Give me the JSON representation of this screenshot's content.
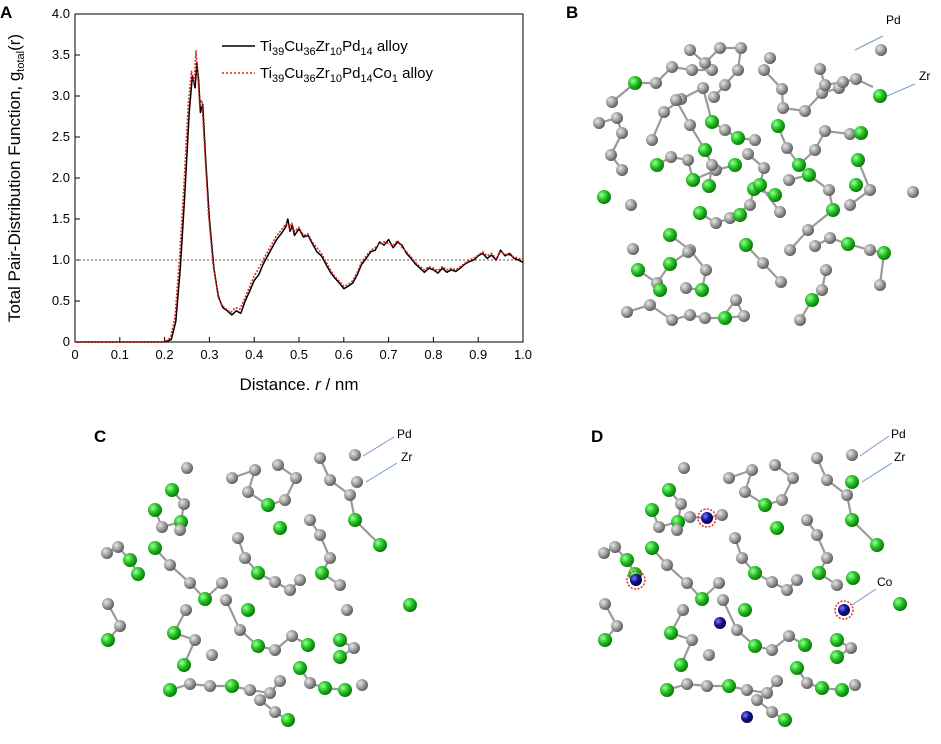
{
  "panels": {
    "a": "A",
    "b": "B",
    "c": "C",
    "d": "D"
  },
  "annotations": {
    "pd": "Pd",
    "zr": "Zr",
    "co": "Co"
  },
  "colors": {
    "ti_cu_atom": "#8c8c8c",
    "zr_atom": "#1fbe1f",
    "co_atom": "#0d0d80",
    "co_highlight": "#e03030",
    "arrow": "#6e9ad0",
    "series1": "#000000",
    "series2": "#e02020"
  },
  "chart_data": {
    "type": "line",
    "ylabel_main": "Total Pair-Distribution Function, g",
    "ylabel_sub": "total",
    "ylabel_tail": "(r)",
    "xlabel": "Distance. r / nm",
    "xlim": [
      0,
      1.0
    ],
    "ylim": [
      0,
      4.0
    ],
    "xticks": [
      "0",
      "0.1",
      "0.2",
      "0.3",
      "0.4",
      "0.5",
      "0.6",
      "0.7",
      "0.8",
      "0.9",
      "1.0"
    ],
    "yticks": [
      "0",
      "0.5",
      "1.0",
      "1.5",
      "2.0",
      "2.5",
      "3.0",
      "3.5",
      "4.0"
    ],
    "reference_line": 1.0,
    "legend_position": "top-right",
    "series": [
      {
        "name": "Ti39Cu36Zr10Pd14 alloy",
        "style": "solid",
        "x": [
          0.0,
          0.2,
          0.215,
          0.225,
          0.235,
          0.245,
          0.255,
          0.262,
          0.268,
          0.272,
          0.276,
          0.28,
          0.285,
          0.292,
          0.3,
          0.31,
          0.32,
          0.33,
          0.34,
          0.35,
          0.36,
          0.37,
          0.38,
          0.39,
          0.4,
          0.41,
          0.42,
          0.43,
          0.44,
          0.45,
          0.46,
          0.47,
          0.475,
          0.48,
          0.485,
          0.49,
          0.5,
          0.51,
          0.52,
          0.53,
          0.54,
          0.55,
          0.56,
          0.57,
          0.58,
          0.59,
          0.6,
          0.61,
          0.62,
          0.63,
          0.64,
          0.65,
          0.66,
          0.67,
          0.68,
          0.69,
          0.7,
          0.71,
          0.72,
          0.73,
          0.74,
          0.75,
          0.76,
          0.77,
          0.78,
          0.79,
          0.8,
          0.81,
          0.82,
          0.83,
          0.84,
          0.85,
          0.86,
          0.87,
          0.88,
          0.89,
          0.9,
          0.91,
          0.92,
          0.93,
          0.94,
          0.95,
          0.96,
          0.97,
          0.98,
          0.99,
          1.0
        ],
        "y": [
          0,
          0,
          0.03,
          0.25,
          0.9,
          1.8,
          2.8,
          3.25,
          3.1,
          3.4,
          3.2,
          2.8,
          2.9,
          2.2,
          1.5,
          0.9,
          0.55,
          0.42,
          0.38,
          0.33,
          0.38,
          0.35,
          0.5,
          0.62,
          0.75,
          0.82,
          0.95,
          1.05,
          1.15,
          1.25,
          1.32,
          1.4,
          1.5,
          1.35,
          1.42,
          1.3,
          1.38,
          1.28,
          1.3,
          1.2,
          1.1,
          1.05,
          0.95,
          0.85,
          0.78,
          0.72,
          0.65,
          0.68,
          0.72,
          0.82,
          0.95,
          1.02,
          1.1,
          1.12,
          1.22,
          1.18,
          1.25,
          1.15,
          1.22,
          1.18,
          1.08,
          1.02,
          0.95,
          0.9,
          0.85,
          0.9,
          0.88,
          0.84,
          0.9,
          0.85,
          0.88,
          0.86,
          0.9,
          0.95,
          0.98,
          1.0,
          1.05,
          1.08,
          1.02,
          1.06,
          1.0,
          1.12,
          1.05,
          1.08,
          1.02,
          1.0,
          0.97
        ]
      },
      {
        "name": "Ti39Cu36Zr10Pd14Co1 alloy",
        "style": "dotted",
        "x": [
          0.0,
          0.2,
          0.213,
          0.223,
          0.233,
          0.243,
          0.253,
          0.26,
          0.266,
          0.27,
          0.274,
          0.278,
          0.283,
          0.29,
          0.298,
          0.308,
          0.318,
          0.328,
          0.338,
          0.348,
          0.358,
          0.368,
          0.378,
          0.388,
          0.398,
          0.408,
          0.418,
          0.428,
          0.438,
          0.448,
          0.458,
          0.468,
          0.474,
          0.479,
          0.484,
          0.49,
          0.5,
          0.51,
          0.52,
          0.53,
          0.54,
          0.55,
          0.56,
          0.57,
          0.58,
          0.59,
          0.6,
          0.61,
          0.62,
          0.63,
          0.64,
          0.65,
          0.66,
          0.67,
          0.68,
          0.69,
          0.7,
          0.71,
          0.72,
          0.73,
          0.74,
          0.75,
          0.76,
          0.77,
          0.78,
          0.79,
          0.8,
          0.81,
          0.82,
          0.83,
          0.84,
          0.85,
          0.86,
          0.87,
          0.88,
          0.89,
          0.9,
          0.91,
          0.92,
          0.93,
          0.94,
          0.95,
          0.96,
          0.97,
          0.98,
          0.99,
          1.0
        ],
        "y": [
          0,
          0,
          0.05,
          0.3,
          1.0,
          1.9,
          2.9,
          3.3,
          3.15,
          3.55,
          3.25,
          2.9,
          2.95,
          2.3,
          1.55,
          0.95,
          0.6,
          0.45,
          0.4,
          0.36,
          0.42,
          0.4,
          0.52,
          0.65,
          0.78,
          0.88,
          0.98,
          1.08,
          1.18,
          1.28,
          1.35,
          1.42,
          1.45,
          1.38,
          1.45,
          1.35,
          1.4,
          1.3,
          1.32,
          1.22,
          1.15,
          1.08,
          0.98,
          0.88,
          0.8,
          0.74,
          0.68,
          0.7,
          0.75,
          0.85,
          0.98,
          1.05,
          1.12,
          1.15,
          1.2,
          1.22,
          1.2,
          1.18,
          1.24,
          1.15,
          1.1,
          1.04,
          0.97,
          0.92,
          0.88,
          0.92,
          0.9,
          0.87,
          0.92,
          0.88,
          0.9,
          0.88,
          0.92,
          0.96,
          1.0,
          1.02,
          1.06,
          1.1,
          1.05,
          1.08,
          1.02,
          1.1,
          1.07,
          1.06,
          1.04,
          1.02,
          1.0
        ]
      }
    ]
  }
}
